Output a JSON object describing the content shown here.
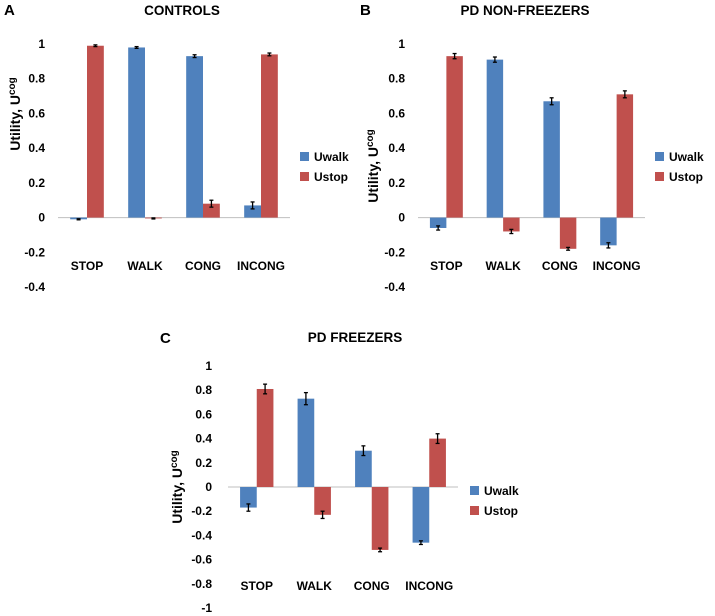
{
  "figure": {
    "panels": [
      "A",
      "B",
      "C"
    ]
  },
  "colors": {
    "uwalk": "#4F81BD",
    "ustop": "#C0504D",
    "axis": "#BFBFBF",
    "errorbar": "#000000",
    "text": "#000000"
  },
  "chart_data": [
    {
      "panel": "A",
      "type": "bar",
      "title": "CONTROLS",
      "ylabel": "Utility, U",
      "ylabel_sup": "cog",
      "categories": [
        "STOP",
        "WALK",
        "CONG",
        "INCONG"
      ],
      "series": [
        {
          "name": "Uwalk",
          "values": [
            -0.01,
            0.98,
            0.93,
            0.07
          ],
          "errors": [
            0.003,
            0.005,
            0.008,
            0.02
          ]
        },
        {
          "name": "Ustop",
          "values": [
            0.99,
            -0.005,
            0.08,
            0.94
          ],
          "errors": [
            0.005,
            0.003,
            0.02,
            0.008
          ]
        }
      ],
      "yticks": [
        "1",
        "0.8",
        "0.6",
        "0.4",
        "0.2",
        "0",
        "-0.2",
        "-0.4"
      ],
      "ylim": [
        -0.4,
        1
      ],
      "legend": "right"
    },
    {
      "panel": "B",
      "type": "bar",
      "title": "PD NON-FREEZERS",
      "ylabel": "Utility, U",
      "ylabel_sup": "cog",
      "categories": [
        "STOP",
        "WALK",
        "CONG",
        "INCONG"
      ],
      "series": [
        {
          "name": "Uwalk",
          "values": [
            -0.06,
            0.91,
            0.67,
            -0.16
          ],
          "errors": [
            0.012,
            0.015,
            0.02,
            0.015
          ]
        },
        {
          "name": "Ustop",
          "values": [
            0.93,
            -0.08,
            -0.18,
            0.71
          ],
          "errors": [
            0.015,
            0.012,
            0.008,
            0.02
          ]
        }
      ],
      "yticks": [
        "1",
        "0.8",
        "0.6",
        "0.4",
        "0.2",
        "0",
        "-0.2",
        "-0.4"
      ],
      "ylim": [
        -0.4,
        1
      ],
      "legend": "right"
    },
    {
      "panel": "C",
      "type": "bar",
      "title": "PD FREEZERS",
      "ylabel": "Utility, U",
      "ylabel_sup": "cog",
      "categories": [
        "STOP",
        "WALK",
        "CONG",
        "INCONG"
      ],
      "series": [
        {
          "name": "Uwalk",
          "values": [
            -0.17,
            0.73,
            0.3,
            -0.46
          ],
          "errors": [
            0.03,
            0.05,
            0.04,
            0.015
          ]
        },
        {
          "name": "Ustop",
          "values": [
            0.81,
            -0.23,
            -0.52,
            0.4
          ],
          "errors": [
            0.04,
            0.03,
            0.015,
            0.04
          ]
        }
      ],
      "yticks": [
        "1",
        "0.8",
        "0.6",
        "0.4",
        "0.2",
        "0",
        "-0.2",
        "-0.4",
        "-0.6",
        "-0.8",
        "-1"
      ],
      "ylim": [
        -1,
        1
      ],
      "legend": "right"
    }
  ]
}
